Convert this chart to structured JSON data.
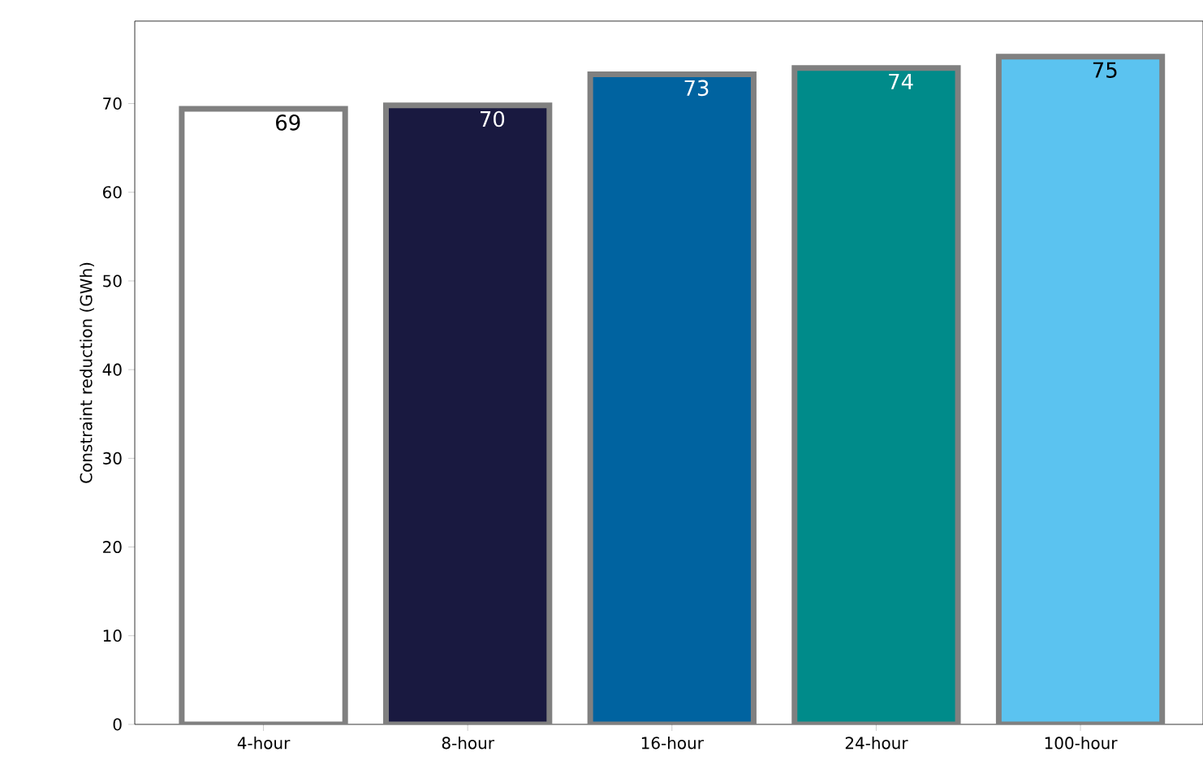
{
  "chart_data": {
    "type": "bar",
    "ylabel": "Constraint reduction (GWh)",
    "categories": [
      "4-hour",
      "8-hour",
      "16-hour",
      "24-hour",
      "100-hour"
    ],
    "values": [
      69.4,
      69.8,
      73.3,
      74.0,
      75.3
    ],
    "value_labels": [
      "69",
      "70",
      "73",
      "74",
      "75"
    ],
    "colors": [
      "#ffffff",
      "#191940",
      "#0063a0",
      "#008b8a",
      "#5bc3f0"
    ],
    "ylim": [
      0,
      79.3
    ],
    "yticks": [
      0,
      10,
      20,
      30,
      40,
      50,
      60,
      70
    ]
  }
}
